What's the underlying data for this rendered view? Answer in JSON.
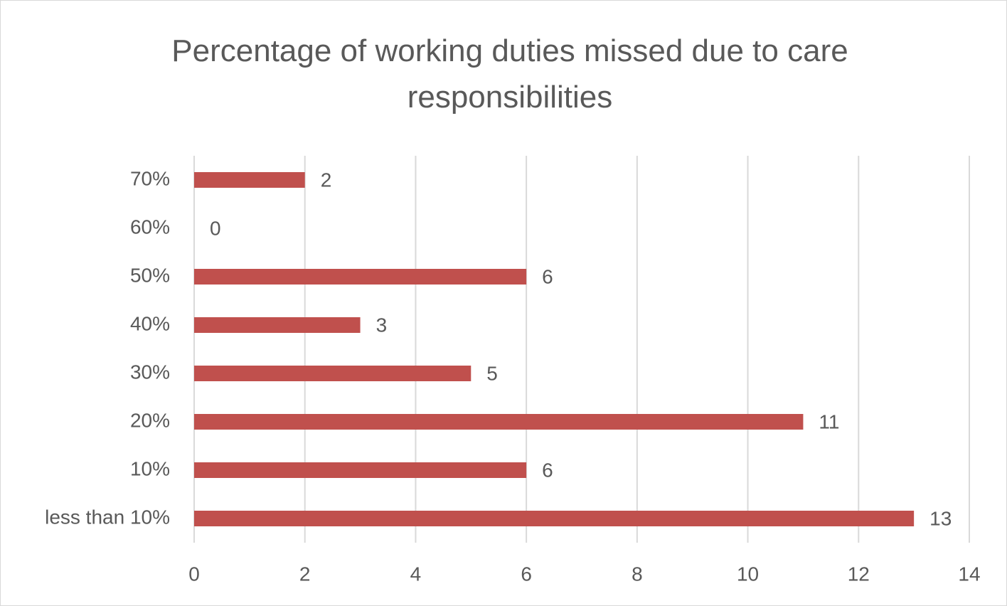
{
  "chart_data": {
    "type": "bar",
    "orientation": "horizontal",
    "title": "Percentage of working duties missed due to care responsibilities",
    "categories": [
      "less than 10%",
      "10%",
      "20%",
      "30%",
      "40%",
      "50%",
      "60%",
      "70%"
    ],
    "values": [
      13,
      6,
      11,
      5,
      3,
      6,
      0,
      2
    ],
    "color": "#c0504d",
    "xlim": [
      0,
      14
    ],
    "xticks": [
      0,
      2,
      4,
      6,
      8,
      10,
      12,
      14
    ],
    "grid": true
  }
}
